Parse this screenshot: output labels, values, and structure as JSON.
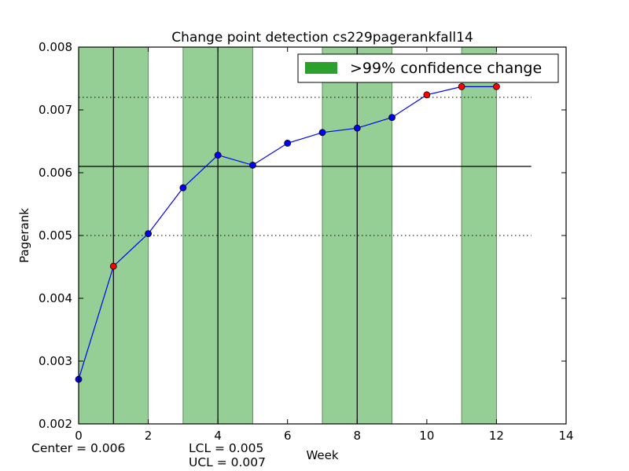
{
  "chart_data": {
    "type": "line",
    "title": "Change point detection cs229pagerankfall14",
    "xlabel": "Week",
    "ylabel": "Pagerank",
    "xlim": [
      0,
      14
    ],
    "ylim": [
      0.002,
      0.008
    ],
    "x_ticks": [
      "0",
      "2",
      "4",
      "6",
      "8",
      "10",
      "12",
      "14"
    ],
    "y_ticks": [
      "0.002",
      "0.003",
      "0.004",
      "0.005",
      "0.006",
      "0.007",
      "0.008"
    ],
    "series": [
      {
        "x": [
          0,
          1,
          2,
          3,
          4,
          5,
          6,
          7,
          8,
          9,
          10,
          11,
          12
        ],
        "values": [
          0.00271,
          0.00451,
          0.00503,
          0.00576,
          0.00628,
          0.00612,
          0.00647,
          0.00664,
          0.00671,
          0.00688,
          0.00724,
          0.00737,
          0.00737
        ],
        "color": "#0000ff",
        "highlighted_points_color": "#ff0000",
        "highlighted_x": [
          1,
          10,
          11,
          12
        ]
      }
    ],
    "center_line": 0.0061,
    "lcl_line": 0.005,
    "ucl_line": 0.0072,
    "change_regions": [
      [
        0,
        2
      ],
      [
        3,
        5
      ],
      [
        7,
        9
      ],
      [
        11,
        12
      ]
    ],
    "change_points": [
      1,
      4,
      8
    ],
    "region_color": "#96cf96",
    "legend": {
      "label": ">99% confidence change",
      "color": "#2ca02c",
      "position": "upper-right"
    },
    "grid": false
  },
  "footer": {
    "center": "Center = 0.006",
    "lcl": "LCL = 0.005",
    "ucl": "UCL = 0.007"
  }
}
